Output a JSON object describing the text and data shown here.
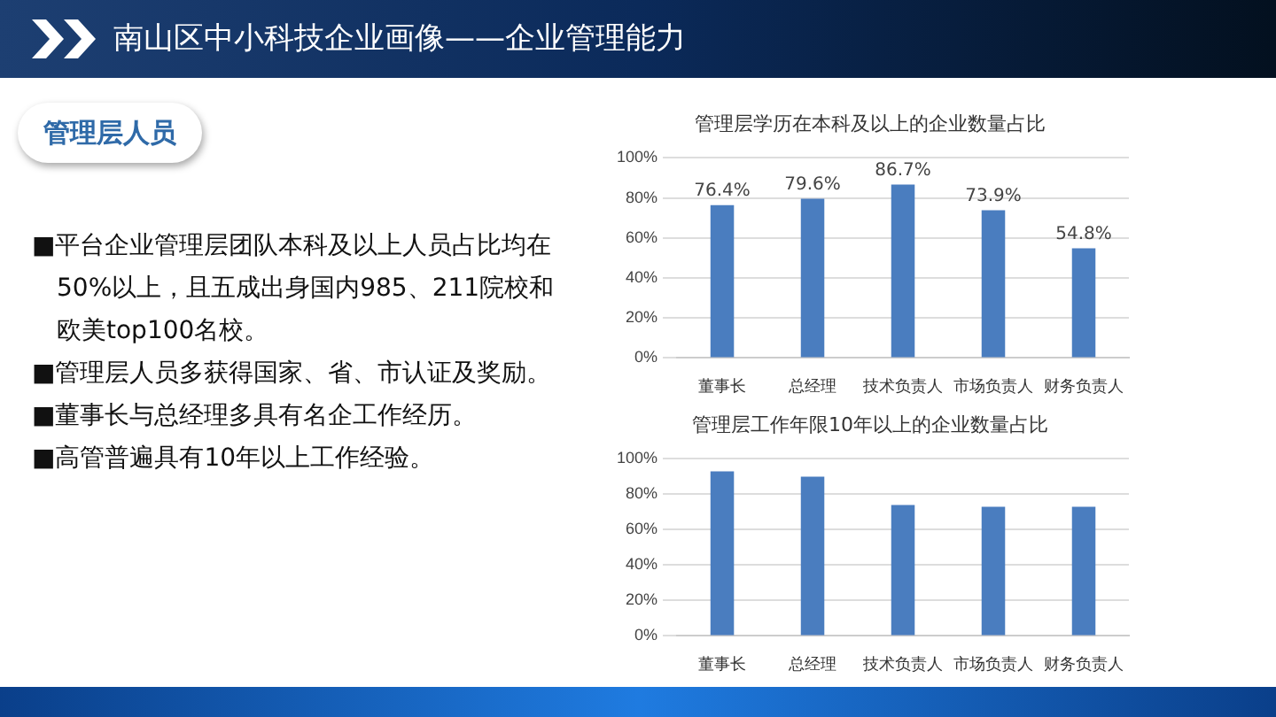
{
  "chart_data": [
    {
      "type": "other",
      "title": "南山区中小科技企业画像——企业管理能力",
      "subtitle": "管理层人员",
      "annotations": [
        "■平台企业管理层团队本科及以上人员占比均在50%以上，且五成出身国内985、211院校和欧美top100名校。",
        "■管理层人员多获得国家、省、市认证及奖励。",
        "■董事长与总经理多具有名企工作经历。",
        "■高管普遍具有10年以上工作经验。"
      ]
    },
    {
      "type": "bar",
      "title": "管理层学历在本科及以上的企业数量占比",
      "categories": [
        "董事长",
        "总经理",
        "技术负责人",
        "市场负责人",
        "财务负责人"
      ],
      "values": [
        76.4,
        79.6,
        86.7,
        73.9,
        54.8
      ],
      "color": "#4a7dbf",
      "value_labels": [
        "76.4%",
        "79.6%",
        "86.7%",
        "73.9%",
        "54.8%"
      ],
      "ylim": [
        0,
        100
      ],
      "yticks": [
        {
          "value": 0,
          "label": "0%"
        },
        {
          "value": 20,
          "label": "20%"
        },
        {
          "value": 40,
          "label": "40%"
        },
        {
          "value": 60,
          "label": "60%"
        },
        {
          "value": 80,
          "label": "80%"
        },
        {
          "value": 100,
          "label": "100%"
        }
      ],
      "grid": "y"
    },
    {
      "type": "bar",
      "title": "管理层工作年限10年以上的企业数量占比",
      "categories": [
        "董事长",
        "总经理",
        "技术负责人",
        "市场负责人",
        "财务负责人"
      ],
      "values": [
        93,
        90,
        74,
        73,
        73
      ],
      "color": "#4a7dbf",
      "ylim": [
        0,
        100
      ],
      "yticks": [
        {
          "value": 0,
          "label": "0%"
        },
        {
          "value": 20,
          "label": "20%"
        },
        {
          "value": 40,
          "label": "40%"
        },
        {
          "value": 60,
          "label": "60%"
        },
        {
          "value": 80,
          "label": "80%"
        },
        {
          "value": 100,
          "label": "100%"
        }
      ],
      "grid": "y"
    }
  ]
}
